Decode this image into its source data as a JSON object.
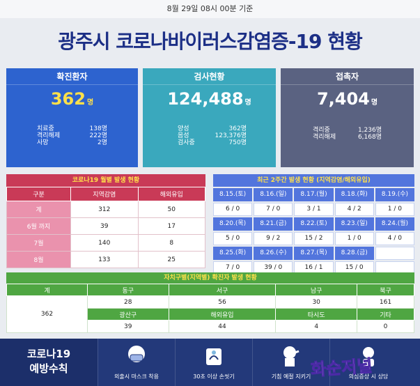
{
  "header": {
    "timestamp": "8월 29일 08시 00분 기준",
    "title": "광주시 코로나바이러스감염증-19 현황"
  },
  "cards": {
    "confirmed": {
      "title": "확진환자",
      "value": "362",
      "unit": "명",
      "rows": [
        {
          "label": "치료중",
          "value": "138명"
        },
        {
          "label": "격리해제",
          "value": "222명"
        },
        {
          "label": "사망",
          "value": "2명"
        }
      ]
    },
    "tests": {
      "title": "검사현황",
      "value": "124,488",
      "unit": "명",
      "rows": [
        {
          "label": "양성",
          "value": "362명"
        },
        {
          "label": "음성",
          "value": "123,376명"
        },
        {
          "label": "검사중",
          "value": "750명"
        }
      ]
    },
    "contacts": {
      "title": "접촉자",
      "value": "7,404",
      "unit": "명",
      "rows": [
        {
          "label": "격리중",
          "value": "1,236명"
        },
        {
          "label": "격리해제",
          "value": "6,168명"
        }
      ]
    }
  },
  "monthly": {
    "title": "코로나19 월별 발생 현황",
    "headers": [
      "구분",
      "지역감염",
      "해외유입"
    ],
    "rows": [
      {
        "label": "계",
        "local": "312",
        "overseas": "50"
      },
      {
        "label": "6월 까지",
        "local": "39",
        "overseas": "17"
      },
      {
        "label": "7월",
        "local": "140",
        "overseas": "8"
      },
      {
        "label": "8월",
        "local": "133",
        "overseas": "25"
      }
    ]
  },
  "daily": {
    "title": "최근 2주간 발생 현황 (지역감염/해외유입)",
    "rows": [
      {
        "dates": [
          "8.15.(토)",
          "8.16.(일)",
          "8.17.(월)",
          "8.18.(화)",
          "8.19.(수)"
        ],
        "values": [
          "6 / 0",
          "7 / 0",
          "3 / 1",
          "4 / 2",
          "1 / 0"
        ]
      },
      {
        "dates": [
          "8.20.(목)",
          "8.21.(금)",
          "8.22.(토)",
          "8.23.(일)",
          "8.24.(월)"
        ],
        "values": [
          "5 / 0",
          "9 / 2",
          "15 / 2",
          "1 / 0",
          "4 / 0"
        ]
      },
      {
        "dates": [
          "8.25.(화)",
          "8.26.(수)",
          "8.27.(목)",
          "8.28.(금)",
          ""
        ],
        "values": [
          "7 / 0",
          "39 / 0",
          "16 / 1",
          "15 / 0",
          ""
        ]
      }
    ]
  },
  "district": {
    "title": "자치구별(지역별) 확진자 발생 현황",
    "total_label": "계",
    "total": "362",
    "header1": [
      "동구",
      "서구",
      "남구",
      "북구"
    ],
    "values1": [
      "28",
      "56",
      "30",
      "161"
    ],
    "header2": [
      "광산구",
      "해외유입",
      "타시도",
      "기타"
    ],
    "values2": [
      "39",
      "44",
      "4",
      "0"
    ]
  },
  "prevention": {
    "title_line1": "코로나19",
    "title_line2": "예방수칙",
    "tips": [
      "외출시 마스크 착용",
      "30초 이상 손씻기",
      "기침 예절 지키기",
      "의심증상 시 상담"
    ]
  },
  "watermark": "화순저널"
}
